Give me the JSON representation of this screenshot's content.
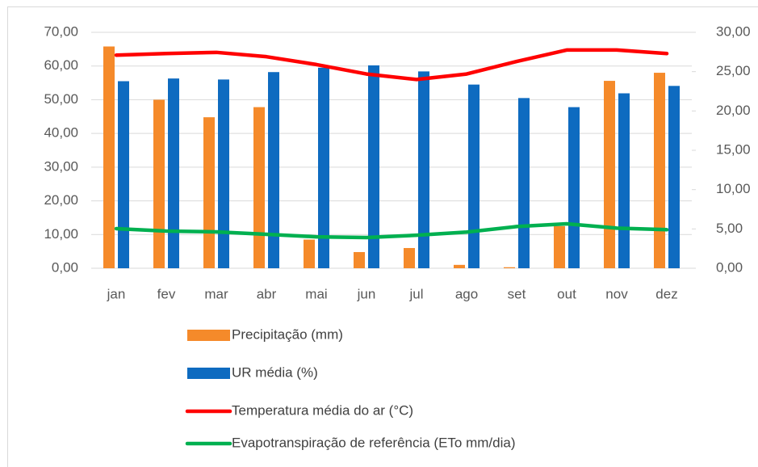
{
  "chart_data": {
    "type": "bar",
    "categories": [
      "jan",
      "fev",
      "mar",
      "abr",
      "mai",
      "jun",
      "jul",
      "ago",
      "set",
      "out",
      "nov",
      "dez"
    ],
    "series": [
      {
        "name": "Precipitação (mm)",
        "type": "bar",
        "color": "#f58a2a",
        "values": [
          65.8,
          50.0,
          44.8,
          47.8,
          8.5,
          4.8,
          6.0,
          1.0,
          0.3,
          12.5,
          55.6,
          58.0
        ]
      },
      {
        "name": "UR média (%)",
        "type": "bar",
        "color": "#0e6bc0",
        "values": [
          55.5,
          56.3,
          56.0,
          58.2,
          59.5,
          60.2,
          58.4,
          54.5,
          50.5,
          47.8,
          51.9,
          54.1
        ]
      },
      {
        "name": "Temperatura média do ar (°C)",
        "type": "line",
        "axis": "y2",
        "color": "#ff0000",
        "values": [
          27.1,
          27.3,
          27.45,
          26.9,
          25.9,
          24.7,
          24.0,
          24.7,
          26.3,
          27.75,
          27.75,
          27.3
        ]
      },
      {
        "name": "Evapotranspiração de referência (ETo mm/dia)",
        "type": "line",
        "axis": "y2",
        "color": "#00b050",
        "values": [
          5.04,
          4.73,
          4.62,
          4.31,
          4.0,
          3.9,
          4.2,
          4.6,
          5.3,
          5.65,
          5.1,
          4.9
        ]
      }
    ],
    "ylim": [
      0,
      70
    ],
    "yticks": [
      {
        "value": 0,
        "label": "0,00"
      },
      {
        "value": 10,
        "label": "10,00"
      },
      {
        "value": 20,
        "label": "20,00"
      },
      {
        "value": 30,
        "label": "30,00"
      },
      {
        "value": 40,
        "label": "40,00"
      },
      {
        "value": 50,
        "label": "50,00"
      },
      {
        "value": 60,
        "label": "60,00"
      },
      {
        "value": 70,
        "label": "70,00"
      }
    ],
    "y2lim": [
      0,
      30
    ],
    "y2ticks": [
      {
        "value": 0,
        "label": "0,00"
      },
      {
        "value": 5,
        "label": "5,00"
      },
      {
        "value": 10,
        "label": "10,00"
      },
      {
        "value": 15,
        "label": "15,00"
      },
      {
        "value": 20,
        "label": "20,00"
      },
      {
        "value": 25,
        "label": "25,00"
      },
      {
        "value": 30,
        "label": "30,00"
      }
    ],
    "grid": true,
    "legend": "bottom"
  }
}
